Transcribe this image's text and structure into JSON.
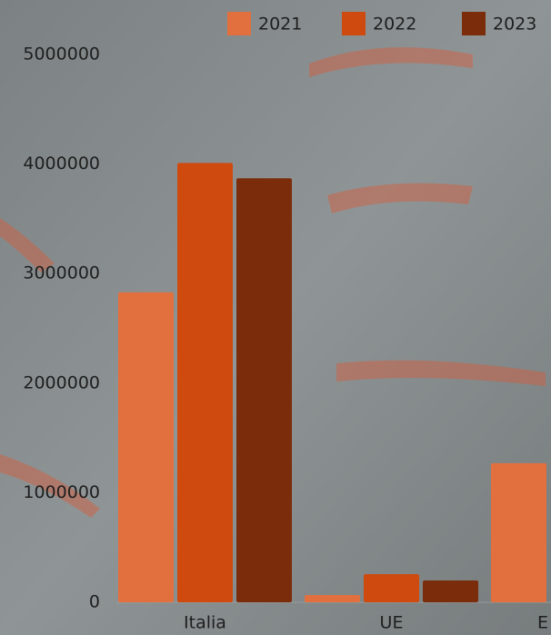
{
  "chart_data": {
    "type": "bar",
    "categories": [
      "Italia",
      "UE",
      "E"
    ],
    "series": [
      {
        "name": "2021",
        "color": "#e2703f",
        "values": [
          2830000,
          66000,
          1270000
        ]
      },
      {
        "name": "2022",
        "color": "#cf4a0f",
        "values": [
          4010000,
          257000,
          null
        ]
      },
      {
        "name": "2023",
        "color": "#7a2c0b",
        "values": [
          3870000,
          199000,
          null
        ]
      }
    ],
    "ylim": [
      0,
      5000000
    ],
    "yticks": [
      0,
      1000000,
      2000000,
      3000000,
      4000000,
      5000000
    ],
    "grid": false,
    "legend": "top"
  }
}
